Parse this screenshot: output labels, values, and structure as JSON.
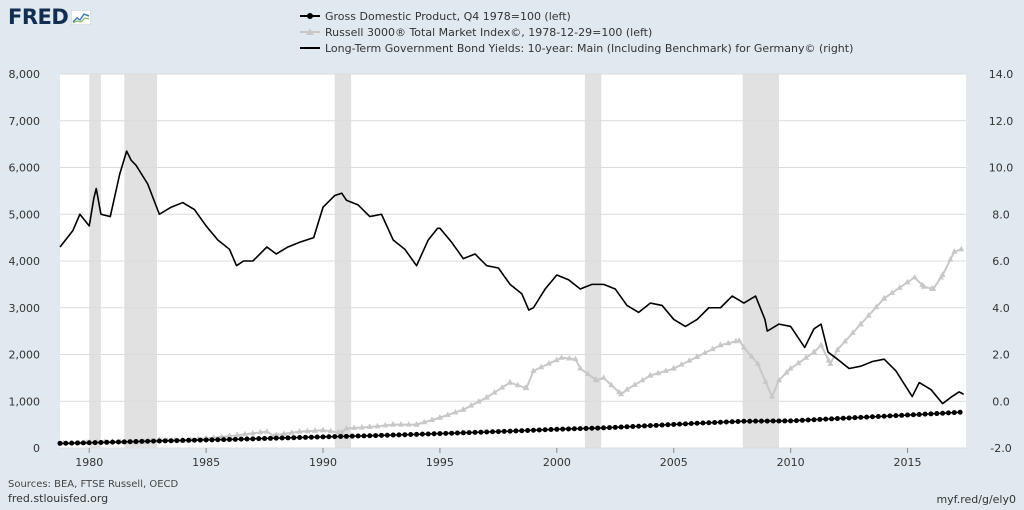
{
  "brand": {
    "name": "FRED"
  },
  "colors": {
    "recession": "#e1e1e1",
    "gdp": "#000000",
    "russell": "#c8c8c8",
    "bond": "#000000",
    "grid": "#dcdcdc",
    "background": "#e1e9f0"
  },
  "footer": {
    "sources": "Sources: BEA, FTSE Russell, OECD",
    "site": "fred.stlouisfed.org",
    "short_url": "myf.red/g/ely0"
  },
  "chart_data": {
    "type": "line",
    "legend_placement": "top-center",
    "grid": true,
    "xlim": [
      1978.75,
      2017.5
    ],
    "ylim_left": [
      0,
      8000
    ],
    "ylim_right": [
      -2.0,
      14.0
    ],
    "x_ticks": [
      1980,
      1985,
      1990,
      1995,
      2000,
      2005,
      2010,
      2015
    ],
    "x_tick_labels": [
      "1980",
      "1985",
      "1990",
      "1995",
      "2000",
      "2005",
      "2010",
      "2015"
    ],
    "y_left_ticks": [
      0,
      1000,
      2000,
      3000,
      4000,
      5000,
      6000,
      7000,
      8000
    ],
    "y_left_tick_labels": [
      "0",
      "1,000",
      "2,000",
      "3,000",
      "4,000",
      "5,000",
      "6,000",
      "7,000",
      "8,000"
    ],
    "y_right_ticks": [
      -2,
      0,
      2,
      4,
      6,
      8,
      10,
      12,
      14
    ],
    "y_right_tick_labels": [
      "-2.0",
      "0.0",
      "2.0",
      "4.0",
      "6.0",
      "8.0",
      "10.0",
      "12.0",
      "14.0"
    ],
    "recessions": [
      [
        1980.0,
        1980.5
      ],
      [
        1981.5,
        1982.9
      ],
      [
        1990.5,
        1991.2
      ],
      [
        2001.2,
        2001.9
      ],
      [
        2007.95,
        2009.5
      ]
    ],
    "series": [
      {
        "name": "Gross Domestic Product, Q4 1978=100 (left)",
        "axis": "left",
        "marker": "circle",
        "points": [
          [
            1978.75,
            100
          ],
          [
            1980,
            112
          ],
          [
            1982,
            138
          ],
          [
            1984,
            162
          ],
          [
            1986,
            182
          ],
          [
            1988,
            210
          ],
          [
            1990,
            238
          ],
          [
            1992,
            262
          ],
          [
            1994,
            292
          ],
          [
            1996,
            325
          ],
          [
            1998,
            360
          ],
          [
            2000,
            400
          ],
          [
            2002,
            430
          ],
          [
            2004,
            478
          ],
          [
            2006,
            530
          ],
          [
            2008,
            572
          ],
          [
            2010,
            580
          ],
          [
            2012,
            630
          ],
          [
            2014,
            680
          ],
          [
            2016,
            730
          ],
          [
            2017.25,
            765
          ]
        ]
      },
      {
        "name": "Russell 3000® Total Market Index©, 1978-12-29=100 (left)",
        "axis": "left",
        "marker": "triangle",
        "points": [
          [
            1978.9,
            100
          ],
          [
            1980,
            120
          ],
          [
            1981,
            135
          ],
          [
            1982,
            120
          ],
          [
            1983,
            165
          ],
          [
            1984,
            160
          ],
          [
            1985,
            205
          ],
          [
            1986,
            255
          ],
          [
            1987.6,
            350
          ],
          [
            1987.9,
            255
          ],
          [
            1988,
            280
          ],
          [
            1989,
            350
          ],
          [
            1990,
            380
          ],
          [
            1990.8,
            330
          ],
          [
            1991,
            420
          ],
          [
            1992,
            450
          ],
          [
            1993,
            500
          ],
          [
            1994,
            500
          ],
          [
            1995,
            650
          ],
          [
            1996,
            820
          ],
          [
            1997,
            1080
          ],
          [
            1998,
            1400
          ],
          [
            1998.7,
            1280
          ],
          [
            1999,
            1650
          ],
          [
            2000.2,
            1930
          ],
          [
            2000.8,
            1900
          ],
          [
            2001,
            1700
          ],
          [
            2001.7,
            1450
          ],
          [
            2002,
            1500
          ],
          [
            2002.75,
            1150
          ],
          [
            2003,
            1250
          ],
          [
            2004,
            1550
          ],
          [
            2005,
            1700
          ],
          [
            2006,
            1950
          ],
          [
            2007,
            2200
          ],
          [
            2007.8,
            2300
          ],
          [
            2008,
            2150
          ],
          [
            2008.6,
            1800
          ],
          [
            2009.2,
            1100
          ],
          [
            2009.5,
            1450
          ],
          [
            2010,
            1700
          ],
          [
            2011,
            2050
          ],
          [
            2011.3,
            2200
          ],
          [
            2011.7,
            1800
          ],
          [
            2012,
            2100
          ],
          [
            2013,
            2650
          ],
          [
            2014,
            3200
          ],
          [
            2015.3,
            3650
          ],
          [
            2015.7,
            3450
          ],
          [
            2016.1,
            3400
          ],
          [
            2016.5,
            3700
          ],
          [
            2017,
            4200
          ],
          [
            2017.3,
            4250
          ]
        ]
      },
      {
        "name": "Long-Term Government Bond Yields: 10-year: Main (Including Benchmark) for Germany© (right)",
        "axis": "right",
        "marker": "none",
        "points": [
          [
            1978.75,
            6.6
          ],
          [
            1979.3,
            7.3
          ],
          [
            1979.6,
            8.0
          ],
          [
            1980,
            7.5
          ],
          [
            1980.2,
            8.7
          ],
          [
            1980.3,
            9.1
          ],
          [
            1980.5,
            8.0
          ],
          [
            1980.9,
            7.9
          ],
          [
            1981.3,
            9.7
          ],
          [
            1981.6,
            10.7
          ],
          [
            1981.8,
            10.3
          ],
          [
            1982,
            10.1
          ],
          [
            1982.5,
            9.3
          ],
          [
            1983,
            8.0
          ],
          [
            1983.5,
            8.3
          ],
          [
            1984,
            8.5
          ],
          [
            1984.5,
            8.2
          ],
          [
            1985,
            7.5
          ],
          [
            1985.5,
            6.9
          ],
          [
            1986,
            6.5
          ],
          [
            1986.3,
            5.8
          ],
          [
            1986.6,
            6.0
          ],
          [
            1987,
            6.0
          ],
          [
            1987.6,
            6.6
          ],
          [
            1988,
            6.3
          ],
          [
            1988.5,
            6.6
          ],
          [
            1989,
            6.8
          ],
          [
            1989.6,
            7.0
          ],
          [
            1990,
            8.3
          ],
          [
            1990.5,
            8.8
          ],
          [
            1990.8,
            8.9
          ],
          [
            1991,
            8.6
          ],
          [
            1991.5,
            8.4
          ],
          [
            1992,
            7.9
          ],
          [
            1992.5,
            8.0
          ],
          [
            1993,
            6.9
          ],
          [
            1993.5,
            6.5
          ],
          [
            1994,
            5.8
          ],
          [
            1994.5,
            6.9
          ],
          [
            1994.9,
            7.4
          ],
          [
            1995,
            7.4
          ],
          [
            1995.5,
            6.8
          ],
          [
            1996,
            6.1
          ],
          [
            1996.5,
            6.3
          ],
          [
            1997,
            5.8
          ],
          [
            1997.5,
            5.7
          ],
          [
            1998,
            5.0
          ],
          [
            1998.5,
            4.6
          ],
          [
            1998.8,
            3.9
          ],
          [
            1999,
            4.0
          ],
          [
            1999.5,
            4.8
          ],
          [
            2000,
            5.4
          ],
          [
            2000.5,
            5.2
          ],
          [
            2001,
            4.8
          ],
          [
            2001.5,
            5.0
          ],
          [
            2002,
            5.0
          ],
          [
            2002.5,
            4.8
          ],
          [
            2003,
            4.1
          ],
          [
            2003.5,
            3.8
          ],
          [
            2004,
            4.2
          ],
          [
            2004.5,
            4.1
          ],
          [
            2005,
            3.5
          ],
          [
            2005.5,
            3.2
          ],
          [
            2006,
            3.5
          ],
          [
            2006.5,
            4.0
          ],
          [
            2007,
            4.0
          ],
          [
            2007.5,
            4.5
          ],
          [
            2008,
            4.2
          ],
          [
            2008.5,
            4.5
          ],
          [
            2008.9,
            3.5
          ],
          [
            2009,
            3.0
          ],
          [
            2009.5,
            3.3
          ],
          [
            2010,
            3.2
          ],
          [
            2010.6,
            2.3
          ],
          [
            2011,
            3.1
          ],
          [
            2011.3,
            3.3
          ],
          [
            2011.6,
            2.1
          ],
          [
            2012,
            1.8
          ],
          [
            2012.5,
            1.4
          ],
          [
            2013,
            1.5
          ],
          [
            2013.5,
            1.7
          ],
          [
            2014,
            1.8
          ],
          [
            2014.5,
            1.3
          ],
          [
            2015.2,
            0.2
          ],
          [
            2015.5,
            0.8
          ],
          [
            2016,
            0.5
          ],
          [
            2016.5,
            -0.1
          ],
          [
            2016.9,
            0.2
          ],
          [
            2017.2,
            0.4
          ],
          [
            2017.4,
            0.3
          ]
        ]
      }
    ]
  }
}
